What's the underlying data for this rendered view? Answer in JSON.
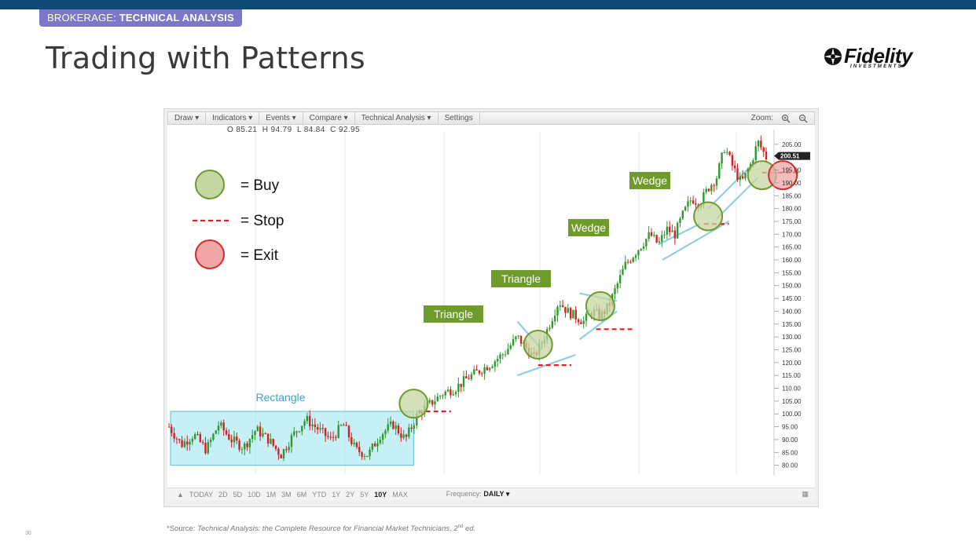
{
  "header": {
    "tag_prefix": "BROKERAGE: ",
    "tag_bold": "TECHNICAL ANALYSIS",
    "title": "Trading with Patterns",
    "logo_text": "Fidelity",
    "logo_sub": "INVESTMENTS"
  },
  "toolbar": {
    "draw": "Draw ▾",
    "indicators": "Indicators ▾",
    "events": "Events ▾",
    "compare": "Compare ▾",
    "technical": "Technical Analysis ▾",
    "settings": "Settings",
    "zoom": "Zoom:",
    "zoom_in_icon": "zoom-in-icon",
    "zoom_out_icon": "zoom-out-icon"
  },
  "ohlc": {
    "o": "O 85.21",
    "h": "H 94.79",
    "l": "L 84.84",
    "c": "C 92.95"
  },
  "legend": {
    "buy": "= Buy",
    "stop": "= Stop",
    "exit": "= Exit"
  },
  "bottombar": {
    "ranges": [
      "TODAY",
      "2D",
      "5D",
      "10D",
      "1M",
      "3M",
      "6M",
      "YTD",
      "1Y",
      "2Y",
      "5Y",
      "10Y",
      "MAX"
    ],
    "selected": "10Y",
    "frequency_label": "Frequency:",
    "frequency_value": "DAILY ▾"
  },
  "footnote": {
    "prefix": "*Source: ",
    "text": "Technical Analysis: the Complete Resource for Financial Market Technicians, 2",
    "sup": "nd",
    "suffix": " ed."
  },
  "page_number": "30",
  "colors": {
    "buy_fill": "#c4d6a2",
    "buy_stroke": "#6f9a2c",
    "exit_fill": "#f0a6a6",
    "exit_stroke": "#d42b2b",
    "stop": "#e02020",
    "pattern_label_bg": "#6f9a2c",
    "rectangle_fill": "#aee8f2",
    "trendline": "#8fcfe6",
    "candle_up": "#2e9a2e",
    "candle_down": "#d42020"
  },
  "chart_data": {
    "type": "line",
    "title": "",
    "xlabel": "",
    "ylabel": "",
    "ylim": [
      75,
      212
    ],
    "y_ticks": [
      "205.00",
      "195.00",
      "190.00",
      "185.00",
      "180.00",
      "175.00",
      "170.00",
      "165.00",
      "160.00",
      "155.00",
      "150.00",
      "145.00",
      "140.00",
      "135.00",
      "130.00",
      "125.00",
      "120.00",
      "115.00",
      "110.00",
      "105.00",
      "100.00",
      "95.00",
      "90.00",
      "85.00",
      "80.00"
    ],
    "last_price": "200.51",
    "price_path": [
      [
        0,
        95
      ],
      [
        3,
        88
      ],
      [
        6,
        92
      ],
      [
        9,
        86
      ],
      [
        12,
        96
      ],
      [
        15,
        90
      ],
      [
        18,
        87
      ],
      [
        21,
        94
      ],
      [
        24,
        90
      ],
      [
        27,
        84
      ],
      [
        30,
        92
      ],
      [
        33,
        98
      ],
      [
        36,
        94
      ],
      [
        39,
        90
      ],
      [
        42,
        96
      ],
      [
        45,
        86
      ],
      [
        48,
        84
      ],
      [
        51,
        92
      ],
      [
        54,
        96
      ],
      [
        57,
        90
      ],
      [
        60,
        100
      ],
      [
        63,
        104
      ],
      [
        66,
        108
      ],
      [
        69,
        110
      ],
      [
        72,
        114
      ],
      [
        75,
        117
      ],
      [
        78,
        120
      ],
      [
        81,
        124
      ],
      [
        84,
        130
      ],
      [
        86,
        126
      ],
      [
        88,
        122
      ],
      [
        90,
        128
      ],
      [
        92,
        136
      ],
      [
        94,
        144
      ],
      [
        96,
        140
      ],
      [
        98,
        138
      ],
      [
        100,
        136
      ],
      [
        102,
        140
      ],
      [
        104,
        138
      ],
      [
        106,
        142
      ],
      [
        108,
        150
      ],
      [
        110,
        158
      ],
      [
        112,
        162
      ],
      [
        114,
        166
      ],
      [
        116,
        170
      ],
      [
        118,
        166
      ],
      [
        120,
        172
      ],
      [
        122,
        170
      ],
      [
        124,
        178
      ],
      [
        126,
        184
      ],
      [
        128,
        182
      ],
      [
        130,
        188
      ],
      [
        132,
        192
      ],
      [
        134,
        204
      ],
      [
        136,
        196
      ],
      [
        138,
        190
      ],
      [
        140,
        196
      ],
      [
        142,
        206
      ],
      [
        144,
        200
      ]
    ],
    "patterns": [
      {
        "name": "Rectangle",
        "y_range": [
          80,
          101
        ]
      },
      {
        "name": "Triangle",
        "buy": 127,
        "stop": 119
      },
      {
        "name": "Triangle",
        "buy": 142,
        "stop": 133
      },
      {
        "name": "Wedge",
        "buy": 177,
        "stop": 173
      },
      {
        "name": "Wedge",
        "buy": 193,
        "stop": 194
      }
    ],
    "legend": [
      "= Buy",
      "= Stop",
      "= Exit"
    ]
  }
}
